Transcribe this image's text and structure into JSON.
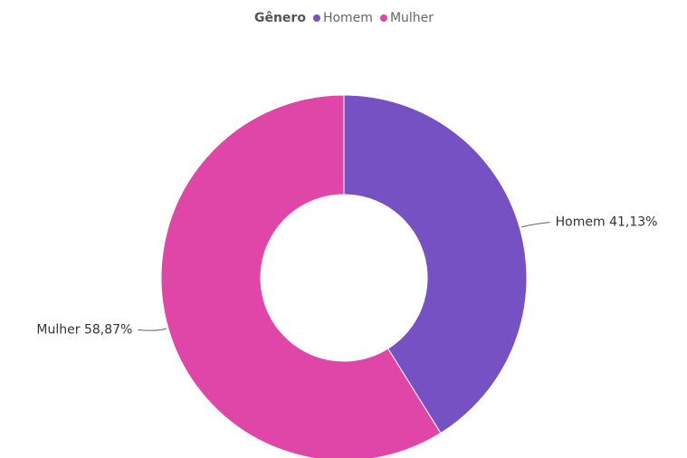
{
  "chart_data": {
    "type": "donut",
    "legend_title": "Gênero",
    "categories": [
      "Homem",
      "Mulher"
    ],
    "values": [
      41.13,
      58.87
    ],
    "value_labels": [
      "41,13%",
      "58,87%"
    ],
    "colors": [
      "#7551c4",
      "#e045a8"
    ]
  }
}
